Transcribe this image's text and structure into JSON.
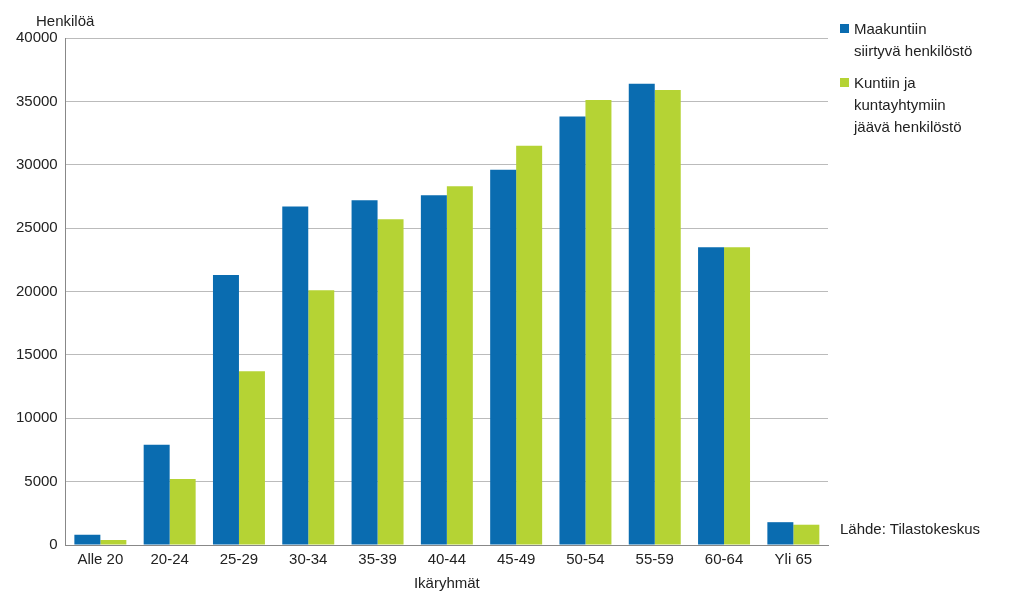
{
  "chart_data": {
    "type": "bar",
    "ylabel": "Henkilöä",
    "xlabel": "Ikäryhmät",
    "categories": [
      "Alle 20",
      "20-24",
      "25-29",
      "30-34",
      "35-39",
      "40-44",
      "45-49",
      "50-54",
      "55-59",
      "60-64",
      "Yli 65"
    ],
    "series": [
      {
        "name": "Maakuntiin siirtyvä henkilöstö",
        "color": "#0a6cb0",
        "values": [
          800,
          7900,
          21300,
          26700,
          27200,
          27600,
          29600,
          33800,
          36400,
          23500,
          1800
        ]
      },
      {
        "name": "Kuntiin ja kuntayhtymiin jäävä henkilöstö",
        "color": "#b5d334",
        "values": [
          400,
          5200,
          13700,
          20100,
          25700,
          28300,
          31500,
          35100,
          35900,
          23500,
          1600
        ]
      }
    ],
    "ylim": [
      0,
      40000
    ],
    "yticks": [
      0,
      5000,
      10000,
      15000,
      20000,
      25000,
      30000,
      35000,
      40000
    ],
    "grid": "y",
    "legend": "top right",
    "annotations": [
      "Lähde: Tilastokeskus"
    ]
  }
}
